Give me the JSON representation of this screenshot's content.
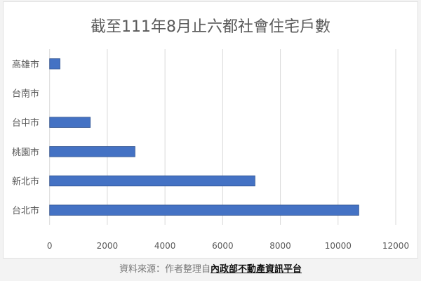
{
  "chart_data": {
    "type": "bar",
    "orientation": "horizontal",
    "title": "截至111年8月止六都社會住宅戶數",
    "categories": [
      "高雄市",
      "台南市",
      "台中市",
      "桃園市",
      "新北市",
      "台北市"
    ],
    "values": [
      360,
      0,
      1410,
      2960,
      7120,
      10720
    ],
    "xlim": [
      0,
      12000
    ],
    "xticks": [
      "0",
      "2000",
      "4000",
      "6000",
      "8000",
      "10000",
      "12000"
    ],
    "xlabel": "",
    "ylabel": "",
    "grid": "vertical",
    "bar_color": "#4472c4"
  },
  "caption": {
    "prefix": "資料來源：作者整理自",
    "link": "內政部不動產資訊平台"
  }
}
